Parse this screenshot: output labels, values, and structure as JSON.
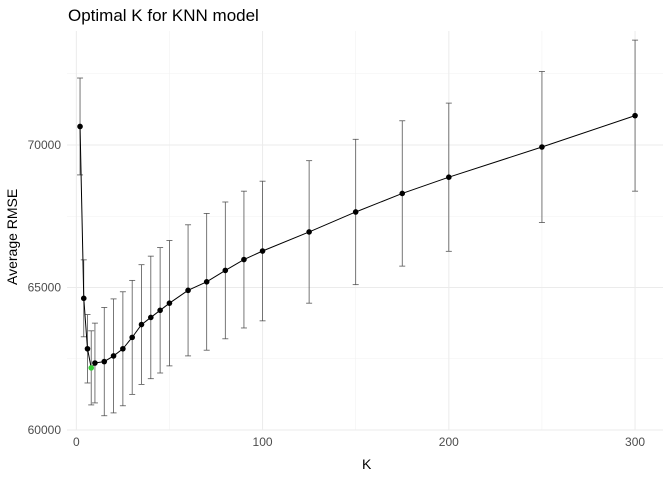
{
  "chart_data": {
    "type": "line",
    "title": "Optimal K for KNN model",
    "xlabel": "K",
    "ylabel": "Average RMSE",
    "xlim": [
      -5,
      315
    ],
    "ylim": [
      60000,
      74000
    ],
    "x_ticks": [
      0,
      100,
      200,
      300
    ],
    "y_ticks": [
      60000,
      65000,
      70000
    ],
    "x_tick_labels": [
      "0",
      "100",
      "200",
      "300"
    ],
    "y_tick_labels": [
      "60000",
      "65000",
      "70000"
    ],
    "grid": true,
    "legend": "none",
    "highlight_color": "#33cc33",
    "series": [
      {
        "x": [
          2,
          4,
          6,
          8,
          10,
          15,
          20,
          25,
          30,
          35,
          40,
          45,
          50,
          60,
          70,
          80,
          90,
          100,
          125,
          150,
          175,
          200,
          250,
          300
        ],
        "y": [
          70650,
          64620,
          62850,
          62180,
          62350,
          62400,
          62600,
          62850,
          63250,
          63700,
          63950,
          64200,
          64450,
          64900,
          65200,
          65600,
          65980,
          66280,
          66950,
          67650,
          68300,
          68870,
          69930,
          71030
        ],
        "err": [
          1700,
          1350,
          1200,
          1300,
          1400,
          1900,
          2000,
          2000,
          2000,
          2100,
          2150,
          2200,
          2200,
          2300,
          2400,
          2400,
          2400,
          2450,
          2500,
          2550,
          2550,
          2600,
          2650,
          2650
        ],
        "min_index": 3
      }
    ]
  }
}
